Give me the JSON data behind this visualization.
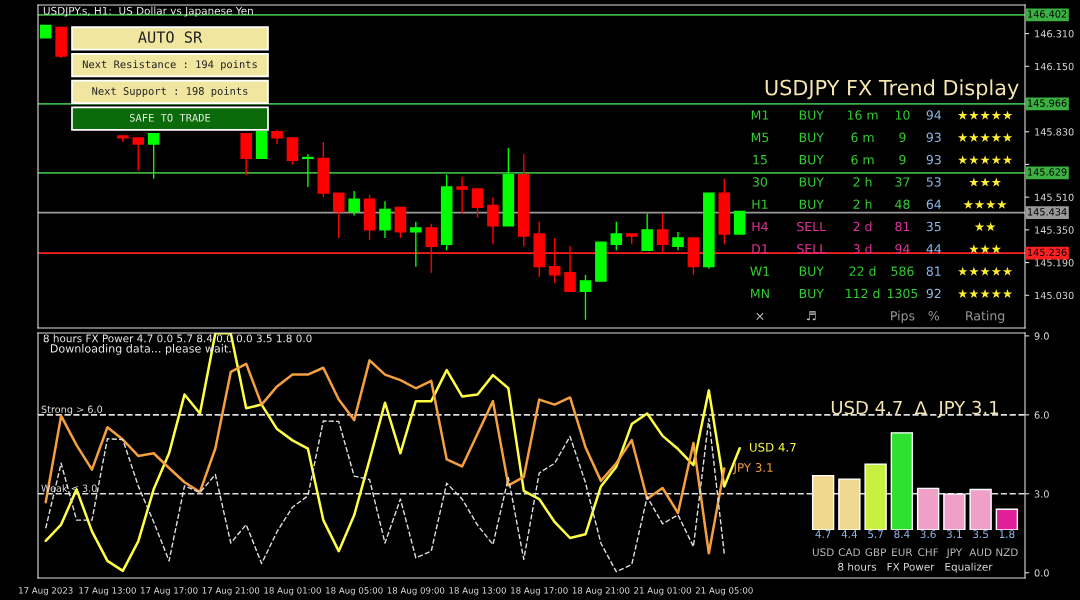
{
  "chart_data": [
    {
      "type": "candlestick",
      "title": "USDJPY.s, H1:  US Dollar vs Japanese Yen",
      "categories": [
        null,
        null,
        null,
        null,
        null,
        null,
        null,
        null,
        null,
        null,
        null,
        null,
        null,
        null,
        null,
        null,
        null,
        null,
        null,
        null,
        null,
        null,
        null,
        null,
        null,
        null,
        null,
        null,
        null,
        null,
        null,
        null,
        null,
        null,
        null,
        null,
        null,
        null,
        null,
        null,
        null,
        null,
        null,
        null,
        null,
        null,
        null,
        null,
        null,
        null,
        null,
        null,
        null,
        null,
        null,
        null,
        null,
        null,
        null,
        null,
        null,
        null,
        null,
        null
      ],
      "ohlc": [
        [
          146.29,
          146.35,
          146.29,
          146.35
        ],
        [
          146.34,
          146.34,
          146.19,
          146.2
        ],
        null,
        null,
        null,
        [
          145.81,
          145.81,
          145.78,
          145.8
        ],
        [
          145.8,
          145.8,
          145.64,
          145.77
        ],
        [
          145.77,
          145.82,
          145.6,
          145.82
        ],
        null,
        null,
        null,
        null,
        null,
        [
          145.82,
          145.82,
          145.62,
          145.7
        ],
        [
          145.7,
          145.83,
          145.7,
          145.83
        ],
        [
          145.83,
          145.84,
          145.77,
          145.8
        ],
        [
          145.8,
          145.8,
          145.67,
          145.69
        ],
        [
          145.7,
          145.72,
          145.56,
          145.7
        ],
        [
          145.7,
          145.78,
          145.51,
          145.53
        ],
        [
          145.53,
          145.53,
          145.31,
          145.44
        ],
        [
          145.44,
          145.54,
          145.42,
          145.5
        ],
        [
          145.5,
          145.52,
          145.3,
          145.35
        ],
        [
          145.35,
          145.49,
          145.31,
          145.45
        ],
        [
          145.46,
          145.46,
          145.31,
          145.34
        ],
        [
          145.34,
          145.39,
          145.17,
          145.36
        ],
        [
          145.36,
          145.38,
          145.14,
          145.27
        ],
        [
          145.28,
          145.62,
          145.25,
          145.56
        ],
        [
          145.56,
          145.61,
          145.43,
          145.55
        ],
        [
          145.55,
          145.55,
          145.41,
          145.46
        ],
        [
          145.47,
          145.51,
          145.28,
          145.37
        ],
        [
          145.37,
          145.75,
          145.37,
          145.62
        ],
        [
          145.62,
          145.72,
          145.27,
          145.32
        ],
        [
          145.33,
          145.39,
          145.12,
          145.17
        ],
        [
          145.17,
          145.31,
          145.09,
          145.13
        ],
        [
          145.14,
          145.27,
          145.05,
          145.05
        ],
        [
          145.05,
          145.13,
          144.91,
          145.1
        ],
        [
          145.1,
          145.29,
          145.1,
          145.29
        ],
        [
          145.28,
          145.39,
          145.25,
          145.33
        ],
        [
          145.33,
          145.33,
          145.28,
          145.32
        ],
        [
          145.25,
          145.43,
          145.25,
          145.35
        ],
        [
          145.35,
          145.43,
          145.24,
          145.28
        ],
        [
          145.27,
          145.34,
          145.25,
          145.31
        ],
        [
          145.31,
          145.31,
          145.13,
          145.17
        ],
        [
          145.17,
          145.53,
          145.16,
          145.53
        ],
        [
          145.53,
          145.6,
          145.28,
          145.33
        ],
        [
          145.33,
          145.44,
          145.33,
          145.44
        ],
        null,
        null,
        null,
        null,
        null,
        null,
        null,
        null,
        null,
        null,
        null,
        null,
        null,
        null,
        null,
        null,
        null,
        null
      ],
      "colors": [
        "#00ff00",
        "#ff0000",
        null,
        null,
        null,
        "#ff0000",
        "#ff0000",
        "#00ff00",
        null,
        null,
        null,
        null,
        null,
        "#ff0000",
        "#00ff00",
        "#ff0000",
        "#ff0000",
        "#00ff00",
        "#ff0000",
        "#ff0000",
        "#00ff00",
        "#ff0000",
        "#00ff00",
        "#ff0000",
        "#00ff00",
        "#ff0000",
        "#00ff00",
        "#ff0000",
        "#ff0000",
        "#ff0000",
        "#00ff00",
        "#ff0000",
        "#ff0000",
        "#ff0000",
        "#ff0000",
        "#00ff00",
        "#00ff00",
        "#00ff00",
        "#ff0000",
        "#00ff00",
        "#ff0000",
        "#00ff00",
        "#ff0000",
        "#00ff00",
        "#ff0000",
        "#00ff00",
        null,
        null,
        null,
        null,
        null,
        null,
        null,
        null,
        null,
        null,
        null,
        null,
        null,
        null,
        null,
        null,
        null,
        null
      ],
      "ylim": [
        144.87,
        146.45
      ],
      "yticks": [
        {
          "value": 146.31,
          "label": "146.310"
        },
        {
          "value": 146.15,
          "label": "146.150"
        },
        {
          "value": 145.99,
          "label": null
        },
        {
          "value": 145.83,
          "label": "145.830"
        },
        {
          "value": 145.67,
          "label": null
        },
        {
          "value": 145.51,
          "label": "145.510"
        },
        {
          "value": 145.35,
          "label": "145.350"
        },
        {
          "value": 145.19,
          "label": "145.190"
        },
        {
          "value": 145.03,
          "label": "145.030"
        }
      ],
      "tick_labels": "y",
      "ref_lines": [
        {
          "axis": "y",
          "value": 146.402,
          "label": "146.402",
          "color": "#3cb043"
        },
        {
          "axis": "y",
          "value": 145.966,
          "label": "145.966",
          "color": "#3cb043"
        },
        {
          "axis": "y",
          "value": 145.629,
          "label": "145.629",
          "color": "#3cb043"
        },
        {
          "axis": "y",
          "value": 145.434,
          "label": "145.434",
          "color": "#9a9a9a"
        },
        {
          "axis": "y",
          "value": 145.236,
          "label": "145.236",
          "color": "#ff2020"
        }
      ]
    },
    {
      "type": "other",
      "title": "AUTO SR",
      "annotations": [
        "Next Resistance : 194 points",
        "Next Support : 198 points",
        "SAFE TO TRADE"
      ],
      "colors": [
        "#f0e6a0",
        "#f0e6a0",
        "#f0e6a0",
        "#0b6b0b"
      ]
    },
    {
      "type": "other",
      "title": "USDJPY FX Trend Display",
      "annotations": [
        "M1",
        "BUY",
        "16 m",
        "10",
        "94",
        "★★★★★",
        "M5",
        "BUY",
        "6 m",
        "9",
        "93",
        "★★★★★",
        "15",
        "BUY",
        "6 m",
        "9",
        "93",
        "★★★★★",
        "30",
        "BUY",
        "2 h",
        "37",
        "53",
        "★★★",
        "H1",
        "BUY",
        "2 h",
        "48",
        "64",
        "★★★★",
        "H4",
        "SELL",
        "2 d",
        "81",
        "35",
        "★★",
        "D1",
        "SELL",
        "3 d",
        "94",
        "44",
        "★★★",
        "W1",
        "BUY",
        "22 d",
        "586",
        "81",
        "★★★★★",
        "MN",
        "BUY",
        "112 d",
        "1305",
        "92",
        "★★★★★",
        "×",
        "♬",
        null,
        "Pips",
        "%",
        "Rating"
      ],
      "colors": [
        "#33cc33",
        "#33cc33",
        "#33cc33",
        "#33cc33",
        "#8fb8e8",
        "#ffee33",
        "#33cc33",
        "#33cc33",
        "#33cc33",
        "#33cc33",
        "#8fb8e8",
        "#ffee33",
        "#33cc33",
        "#33cc33",
        "#33cc33",
        "#33cc33",
        "#8fb8e8",
        "#ffee33",
        "#33cc33",
        "#33cc33",
        "#33cc33",
        "#33cc33",
        "#8fb8e8",
        "#ffee33",
        "#33cc33",
        "#33cc33",
        "#33cc33",
        "#33cc33",
        "#8fb8e8",
        "#ffee33",
        "#dd3399",
        "#dd3399",
        "#dd3399",
        "#dd3399",
        "#8fb8e8",
        "#ffee33",
        "#dd3399",
        "#dd3399",
        "#dd3399",
        "#dd3399",
        "#8fb8e8",
        "#ffee33",
        "#33cc33",
        "#33cc33",
        "#33cc33",
        "#33cc33",
        "#8fb8e8",
        "#ffee33",
        "#33cc33",
        "#33cc33",
        "#33cc33",
        "#33cc33",
        "#8fb8e8",
        "#ffee33",
        "#cccccc",
        "#cccccc",
        "#cccccc",
        "#999999",
        "#999999",
        "#999999"
      ]
    },
    {
      "type": "line",
      "title": "8 hours FX Power 4.7 0.0 5.7 8.4 0.0 0.0 3.5 1.8 0.0",
      "subtitle": "Downloading data... please wait.",
      "categories": [
        "17 Aug 2023",
        null,
        null,
        null,
        "17 Aug 13:00",
        null,
        null,
        null,
        "17 Aug 17:00",
        null,
        null,
        null,
        "17 Aug 21:00",
        null,
        null,
        null,
        "18 Aug 01:00",
        null,
        null,
        null,
        "18 Aug 05:00",
        null,
        null,
        null,
        "18 Aug 09:00",
        null,
        null,
        null,
        "18 Aug 13:00",
        null,
        null,
        null,
        "18 Aug 17:00",
        null,
        null,
        null,
        "18 Aug 21:00",
        null,
        null,
        null,
        "21 Aug 01:00",
        null,
        null,
        null,
        "21 Aug 05:00",
        null,
        null,
        null,
        null,
        null,
        null,
        null,
        null,
        null,
        null,
        null,
        null,
        null,
        null,
        null,
        null,
        null,
        null,
        null
      ],
      "series": [
        {
          "name": "USD 4.7",
          "color": "#ffff44",
          "line_style": "solid",
          "values": [
            1.21,
            1.83,
            3.17,
            1.57,
            0.45,
            0.07,
            1.19,
            3.17,
            4.54,
            6.77,
            6.05,
            9.1,
            9.1,
            6.25,
            6.39,
            5.46,
            5.03,
            4.72,
            2.0,
            0.82,
            2.18,
            4.29,
            6.46,
            4.54,
            6.52,
            6.52,
            7.7,
            6.7,
            6.77,
            7.51,
            7.01,
            3.11,
            2.8,
            1.93,
            1.32,
            1.46,
            3.28,
            4.03,
            5.65,
            6.05,
            5.2,
            4.7,
            4.09,
            6.93,
            3.28,
            4.73,
            null,
            null,
            null,
            null,
            null,
            null,
            null,
            null,
            null,
            null,
            null,
            null,
            null,
            null,
            null,
            null,
            null,
            null
          ]
        },
        {
          "name": "JPY 3.1",
          "color": "#f5a040",
          "line_style": "solid",
          "values": [
            2.68,
            5.96,
            4.85,
            3.92,
            5.53,
            5.06,
            4.44,
            4.54,
            3.98,
            3.44,
            3.07,
            4.72,
            7.63,
            7.94,
            6.39,
            7.08,
            7.53,
            7.53,
            7.79,
            6.58,
            5.8,
            8.07,
            7.53,
            7.32,
            7.01,
            7.29,
            4.31,
            4.04,
            5.28,
            6.52,
            3.32,
            3.64,
            6.58,
            6.39,
            6.66,
            4.77,
            3.49,
            4.16,
            5.04,
            2.81,
            3.22,
            2.27,
            4.93,
            0.74,
            3.96,
            null,
            null,
            null,
            null,
            null,
            null,
            null,
            null,
            null,
            null,
            null,
            null,
            null,
            null,
            null,
            null,
            null,
            null,
            null
          ]
        },
        {
          "color": "#e0e0e0",
          "line_style": "dashed",
          "values": [
            1.69,
            4.16,
            2.0,
            2.0,
            5.09,
            5.06,
            3.3,
            1.93,
            0.45,
            3.3,
            3.05,
            3.73,
            1.13,
            1.83,
            0.35,
            1.56,
            2.49,
            2.92,
            5.77,
            5.75,
            3.67,
            3.54,
            1.13,
            2.8,
            0.57,
            0.82,
            3.4,
            2.8,
            1.81,
            1.07,
            3.61,
            0.51,
            3.79,
            4.16,
            5.18,
            3.42,
            1.12,
            0.04,
            0.31,
            2.88,
            1.86,
            2.2,
            0.99,
            5.85,
            0.72,
            null,
            null,
            null,
            null,
            null,
            null,
            null,
            null,
            null,
            null,
            null,
            null,
            null,
            null,
            null,
            null,
            null,
            null,
            null
          ]
        }
      ],
      "ylim": [
        -0.2,
        9.11
      ],
      "yticks": [
        {
          "value": 0,
          "label": "0.0"
        },
        {
          "value": 3,
          "label": "3.0"
        },
        {
          "value": 6,
          "label": "6.0"
        },
        {
          "value": 9,
          "label": "9.0"
        }
      ],
      "ref_lines": [
        {
          "axis": "y",
          "value": 6,
          "label": "Strong > 6.0",
          "color": "#dddddd",
          "line_style": "dashed"
        },
        {
          "axis": "y",
          "value": 3,
          "label": "Weak < 3.0",
          "color": "#dddddd",
          "line_style": "dashed"
        }
      ]
    },
    {
      "type": "bar",
      "title": "USD 4.7  ∆  JPY 3.1",
      "categories": [
        "USD",
        "CAD",
        "GBP",
        "EUR",
        "CHF",
        "JPY",
        "AUD",
        "NZD"
      ],
      "values": [
        4.7,
        4.4,
        5.7,
        8.4,
        3.6,
        3.1,
        3.5,
        1.8
      ],
      "colors": [
        "#f0d890",
        "#f0d890",
        "#c8f040",
        "#30e030",
        "#f0a0c8",
        "#f0a0c8",
        "#f0a0c8",
        "#e0209a"
      ],
      "data_labels": true,
      "annotations": [
        "8 hours   FX Power   Equalizer"
      ]
    }
  ]
}
